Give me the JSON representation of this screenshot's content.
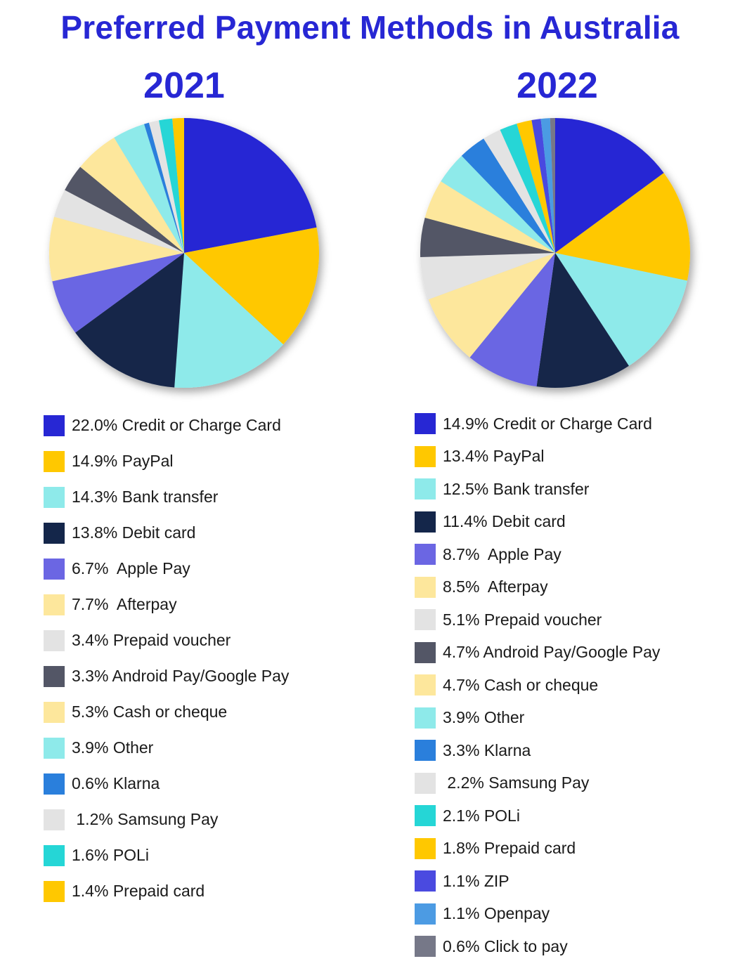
{
  "title": "Preferred Payment Methods in Australia",
  "chart_data": [
    {
      "type": "pie",
      "title": "2021",
      "unit": "%",
      "slices": [
        {
          "name": "Credit or Charge Card",
          "value": 22.0,
          "label": "22.0% Credit or Charge Card",
          "color": "#2727d4"
        },
        {
          "name": "PayPal",
          "value": 14.9,
          "label": "14.9% PayPal",
          "color": "#ffc800"
        },
        {
          "name": "Bank transfer",
          "value": 14.3,
          "label": "14.3% Bank transfer",
          "color": "#8eeaea"
        },
        {
          "name": "Debit card",
          "value": 13.8,
          "label": "13.8% Debit card",
          "color": "#14264a"
        },
        {
          "name": "Apple Pay",
          "value": 6.7,
          "label": "6.7%  Apple Pay",
          "color": "#6b66e3"
        },
        {
          "name": "Afterpay",
          "value": 7.7,
          "label": "7.7%  Afterpay",
          "color": "#fde79c"
        },
        {
          "name": "Prepaid voucher",
          "value": 3.4,
          "label": "3.4% Prepaid voucher",
          "color": "#e3e3e3"
        },
        {
          "name": "Android Pay/Google Pay",
          "value": 3.3,
          "label": "3.3% Android Pay/Google Pay",
          "color": "#535666"
        },
        {
          "name": "Cash or cheque",
          "value": 5.3,
          "label": "5.3% Cash or cheque",
          "color": "#fde79c"
        },
        {
          "name": "Other",
          "value": 3.9,
          "label": "3.9% Other",
          "color": "#8eeaea"
        },
        {
          "name": "Klarna",
          "value": 0.6,
          "label": "0.6% Klarna",
          "color": "#2a7fdc"
        },
        {
          "name": "Samsung Pay",
          "value": 1.2,
          "label": " 1.2% Samsung Pay",
          "color": "#e3e3e3"
        },
        {
          "name": "POLi",
          "value": 1.6,
          "label": "1.6% POLi",
          "color": "#25d6d6"
        },
        {
          "name": "Prepaid card",
          "value": 1.4,
          "label": "1.4% Prepaid card",
          "color": "#ffc800"
        }
      ]
    },
    {
      "type": "pie",
      "title": "2022",
      "unit": "%",
      "slices": [
        {
          "name": "Credit or Charge Card",
          "value": 14.9,
          "label": "14.9% Credit or Charge Card",
          "color": "#2727d4"
        },
        {
          "name": "PayPal",
          "value": 13.4,
          "label": "13.4% PayPal",
          "color": "#ffc800"
        },
        {
          "name": "Bank transfer",
          "value": 12.5,
          "label": "12.5% Bank transfer",
          "color": "#8eeaea"
        },
        {
          "name": "Debit card",
          "value": 11.4,
          "label": "11.4% Debit card",
          "color": "#14264a"
        },
        {
          "name": "Apple Pay",
          "value": 8.7,
          "label": "8.7%  Apple Pay",
          "color": "#6b66e3"
        },
        {
          "name": "Afterpay",
          "value": 8.5,
          "label": "8.5%  Afterpay",
          "color": "#fde79c"
        },
        {
          "name": "Prepaid voucher",
          "value": 5.1,
          "label": "5.1% Prepaid voucher",
          "color": "#e3e3e3"
        },
        {
          "name": "Android Pay/Google Pay",
          "value": 4.7,
          "label": "4.7% Android Pay/Google Pay",
          "color": "#535666"
        },
        {
          "name": "Cash or cheque",
          "value": 4.7,
          "label": "4.7% Cash or cheque",
          "color": "#fde79c"
        },
        {
          "name": "Other",
          "value": 3.9,
          "label": "3.9% Other",
          "color": "#8eeaea"
        },
        {
          "name": "Klarna",
          "value": 3.3,
          "label": "3.3% Klarna",
          "color": "#2a7fdc"
        },
        {
          "name": "Samsung Pay",
          "value": 2.2,
          "label": " 2.2% Samsung Pay",
          "color": "#e3e3e3"
        },
        {
          "name": "POLi",
          "value": 2.1,
          "label": "2.1% POLi",
          "color": "#25d6d6"
        },
        {
          "name": "Prepaid card",
          "value": 1.8,
          "label": "1.8% Prepaid card",
          "color": "#ffc800"
        },
        {
          "name": "ZIP",
          "value": 1.1,
          "label": "1.1% ZIP",
          "color": "#4a4ae0"
        },
        {
          "name": "Openpay",
          "value": 1.1,
          "label": "1.1% Openpay",
          "color": "#4c9be3"
        },
        {
          "name": "Click to pay",
          "value": 0.6,
          "label": "0.6% Click to pay",
          "color": "#767888"
        }
      ]
    }
  ]
}
